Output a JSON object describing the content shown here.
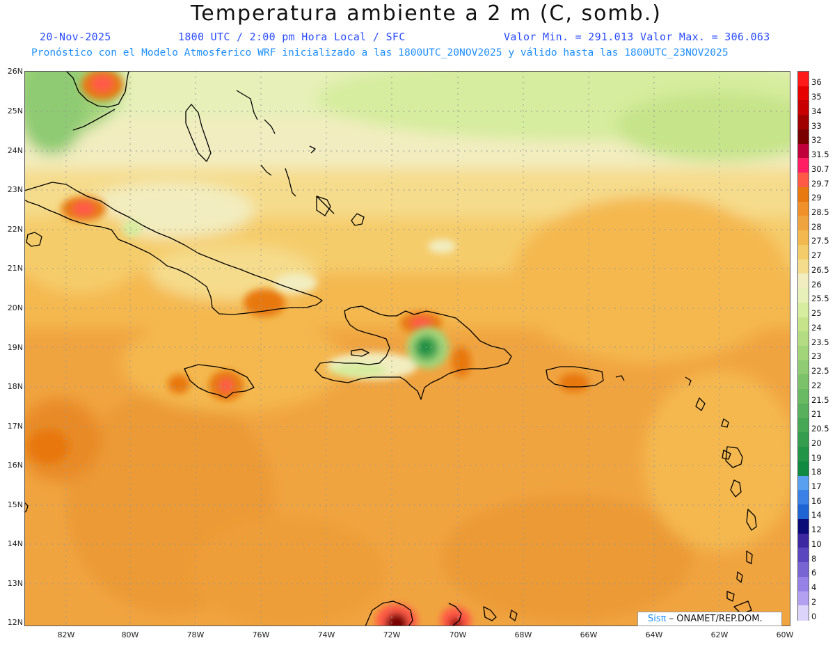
{
  "header": {
    "title": "Temperatura ambiente a 2 m (C, somb.)",
    "date": "20-Nov-2025",
    "time": "1800 UTC / 2:00 pm Hora Local / SFC",
    "minmax": "Valor Min. = 291.013  Valor Max. = 306.063",
    "description": "Pronóstico con el Modelo Atmosferico WRF inicializado a las 1800UTC_20NOV2025 y válido hasta las  1800UTC_23NOV2025"
  },
  "axes": {
    "lat_labels": [
      "26N",
      "25N",
      "24N",
      "23N",
      "22N",
      "21N",
      "20N",
      "19N",
      "18N",
      "17N",
      "16N",
      "15N",
      "14N",
      "13N",
      "12N"
    ],
    "lon_labels": [
      "82W",
      "80W",
      "78W",
      "76W",
      "74W",
      "72W",
      "70W",
      "68W",
      "66W",
      "64W",
      "62W",
      "60W"
    ]
  },
  "colorbar": {
    "labels": [
      "36",
      "35",
      "34",
      "33",
      "32",
      "31.5",
      "30.7",
      "29.7",
      "29",
      "28.5",
      "28",
      "27.5",
      "27",
      "26.5",
      "26",
      "25.5",
      "25",
      "24",
      "23.5",
      "23",
      "22.5",
      "22",
      "21.5",
      "21",
      "20.5",
      "20",
      "19",
      "18",
      "17",
      "16",
      "14",
      "12",
      "10",
      "8",
      "6",
      "4",
      "2",
      "0"
    ],
    "colors": [
      "#ff1a1a",
      "#e60000",
      "#c80000",
      "#a00000",
      "#7a0000",
      "#c0003a",
      "#ff1e64",
      "#ff5a46",
      "#e87810",
      "#f0902a",
      "#f0a440",
      "#f4b850",
      "#f5cc6a",
      "#f5dc8c",
      "#f2edc0",
      "#e6f0b8",
      "#d6ec9e",
      "#c6e48a",
      "#b4dc82",
      "#a2d47a",
      "#8ecb72",
      "#7cc26a",
      "#6ab963",
      "#58b05c",
      "#46a755",
      "#349e4e",
      "#229447",
      "#108a40",
      "#5aa0f0",
      "#3c82e6",
      "#1e64d2",
      "#0a0a78",
      "#3c28a0",
      "#5a46be",
      "#7864d2",
      "#9682e6",
      "#b4a0f0",
      "#dcd4fa"
    ]
  },
  "credit": {
    "brand": "Sisπ",
    "org": " – ONAMET/REP.DOM."
  },
  "map_colors": {
    "sea_base": "#f0a440",
    "land_outline": "#000000",
    "grid": "#9a9a9a"
  }
}
